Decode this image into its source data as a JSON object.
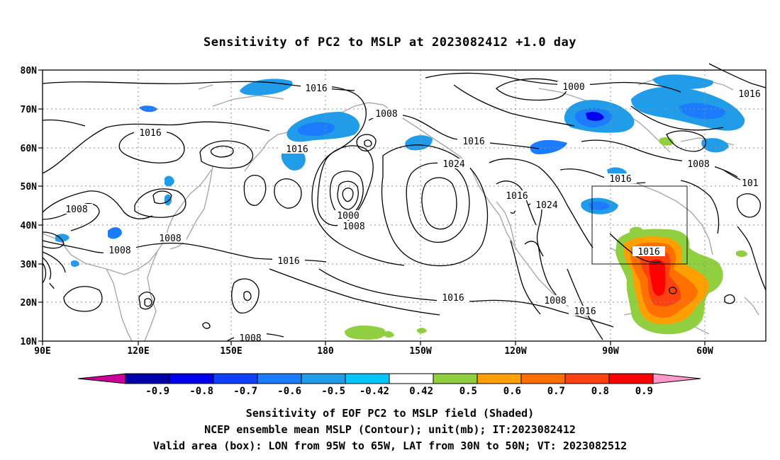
{
  "title": "Sensitivity of PC2 to MSLP at 2023082412 +1.0 day",
  "map": {
    "lat_labels": [
      "80N",
      "70N",
      "60N",
      "50N",
      "40N",
      "30N",
      "20N",
      "10N"
    ],
    "lon_labels": [
      "90E",
      "120E",
      "150E",
      "180",
      "150W",
      "120W",
      "90W",
      "60W"
    ],
    "contour_labels": [
      "1016",
      "1008",
      "1016",
      "1016",
      "1016",
      "1000",
      "1016",
      "1024",
      "1008",
      "1000",
      "1008",
      "1008",
      "1008",
      "1016",
      "1016",
      "1024",
      "1016",
      "1008",
      "1016",
      "1016",
      "1016",
      "1008",
      "1008",
      "101"
    ],
    "valid_box": {
      "lon_from": "95W",
      "lon_to": "65W",
      "lat_from": "30N",
      "lat_to": "50N"
    }
  },
  "colorbar": {
    "labels": [
      "-0.9",
      "-0.8",
      "-0.7",
      "-0.6",
      "-0.5",
      "-0.42",
      "0.42",
      "0.5",
      "0.6",
      "0.7",
      "0.8",
      "0.9"
    ],
    "colors": [
      "#cc0099",
      "#0000a8",
      "#0000ee",
      "#1040ff",
      "#1c7cff",
      "#209ce8",
      "#00c8ff",
      "#ffffff",
      "#90d040",
      "#ffa000",
      "#ff7000",
      "#ff4010",
      "#ff0000",
      "#ff99cc"
    ]
  },
  "captions": [
    "Sensitivity of EOF PC2 to MSLP field (Shaded)",
    "NCEP ensemble mean MSLP (Contour); unit(mb); IT:2023082412",
    "Valid area (box): LON from 95W to 65W, LAT from 30N to 50N; VT: 2023082512"
  ]
}
